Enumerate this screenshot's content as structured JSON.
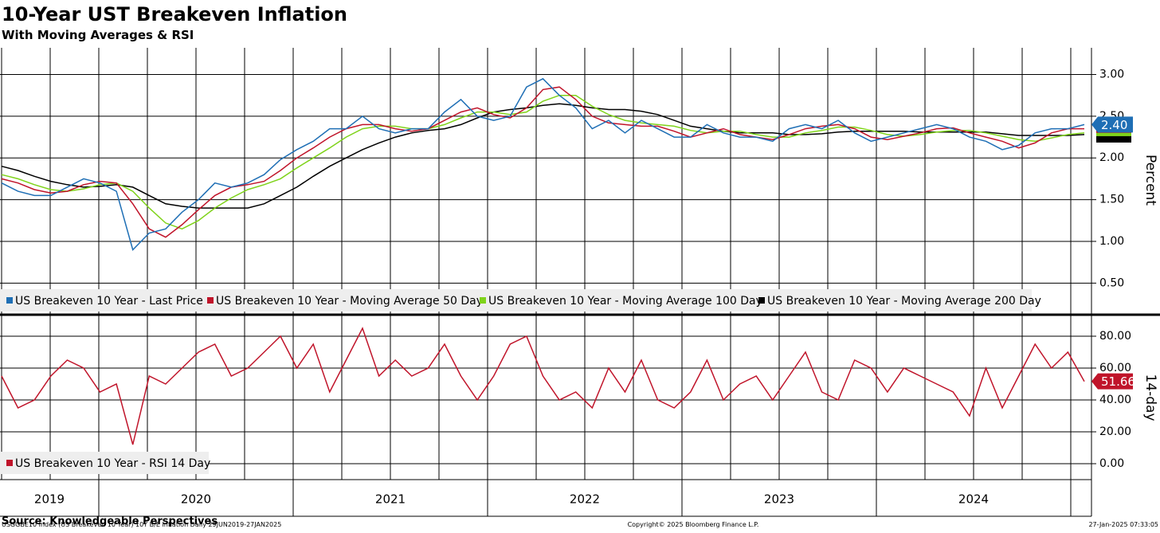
{
  "title": "10-Year UST Breakeven Inflation",
  "subtitle": "With Moving Averages & RSI",
  "source": "Source: Knowledgeable Perspectives",
  "footer": [
    "USGGBE10 Index (US Breakeven 10 Year) 10Y B/E Inflation  Daily 29JUN2019-27JAN2025",
    "Copyright© 2025 Bloomberg Finance L.P.",
    "27-Jan-2025 07:33:05"
  ],
  "x_labels": [
    "2019",
    "2020",
    "2021",
    "2022",
    "2023",
    "2024"
  ],
  "chart_data": [
    {
      "type": "line",
      "ylabel": "Percent",
      "ylim": [
        0.15,
        3.32
      ],
      "grid": true,
      "yticks": [
        {
          "value": 0.5,
          "label": "0.50"
        },
        {
          "value": 1,
          "label": "1.00"
        },
        {
          "value": 1.5,
          "label": "1.50"
        },
        {
          "value": 2,
          "label": "2.00"
        },
        {
          "value": 2.5,
          "label": "2.50"
        },
        {
          "value": 3,
          "label": "3.00"
        }
      ],
      "series": [
        {
          "name": "US Breakeven 10 Year - Last Price",
          "color": "#1f6fb5",
          "values": [
            1.7,
            1.6,
            1.55,
            1.55,
            1.65,
            1.75,
            1.7,
            1.6,
            0.9,
            1.1,
            1.15,
            1.35,
            1.5,
            1.7,
            1.65,
            1.7,
            1.8,
            1.98,
            2.1,
            2.2,
            2.35,
            2.35,
            2.5,
            2.35,
            2.3,
            2.35,
            2.35,
            2.55,
            2.7,
            2.5,
            2.45,
            2.5,
            2.85,
            2.95,
            2.75,
            2.6,
            2.35,
            2.45,
            2.3,
            2.45,
            2.35,
            2.25,
            2.25,
            2.4,
            2.3,
            2.25,
            2.25,
            2.2,
            2.35,
            2.4,
            2.35,
            2.45,
            2.3,
            2.2,
            2.25,
            2.3,
            2.35,
            2.4,
            2.35,
            2.25,
            2.2,
            2.1,
            2.15,
            2.3,
            2.35,
            2.35,
            2.4
          ],
          "value_labels": [
            null,
            null,
            null,
            null,
            null,
            null,
            null,
            null,
            null,
            null,
            null,
            null,
            null,
            null,
            null,
            null,
            null,
            null,
            null,
            null,
            null,
            null,
            null,
            null,
            null,
            null,
            null,
            null,
            null,
            null,
            null,
            null,
            null,
            null,
            null,
            null,
            null,
            null,
            null,
            null,
            null,
            null,
            null,
            null,
            null,
            null,
            null,
            null,
            null,
            null,
            null,
            null,
            null,
            null,
            null,
            null,
            null,
            null,
            null,
            null,
            null,
            null,
            null,
            null,
            null,
            null,
            "2.40"
          ]
        },
        {
          "name": "US Breakeven 10 Year - Moving Average 50 Day",
          "color": "#c0142a",
          "values": [
            1.75,
            1.7,
            1.62,
            1.58,
            1.6,
            1.68,
            1.72,
            1.7,
            1.45,
            1.15,
            1.05,
            1.2,
            1.38,
            1.55,
            1.65,
            1.68,
            1.72,
            1.85,
            2.0,
            2.12,
            2.25,
            2.35,
            2.4,
            2.4,
            2.35,
            2.32,
            2.35,
            2.45,
            2.55,
            2.6,
            2.52,
            2.48,
            2.6,
            2.82,
            2.85,
            2.7,
            2.5,
            2.42,
            2.4,
            2.38,
            2.38,
            2.32,
            2.25,
            2.3,
            2.35,
            2.28,
            2.25,
            2.22,
            2.28,
            2.35,
            2.38,
            2.4,
            2.35,
            2.25,
            2.22,
            2.26,
            2.3,
            2.35,
            2.36,
            2.3,
            2.25,
            2.2,
            2.12,
            2.18,
            2.3,
            2.35,
            2.35
          ]
        },
        {
          "name": "US Breakeven 10 Year - Moving Average 100 Day",
          "color": "#7fd31a",
          "values": [
            1.8,
            1.75,
            1.68,
            1.62,
            1.6,
            1.63,
            1.68,
            1.7,
            1.6,
            1.4,
            1.22,
            1.15,
            1.25,
            1.4,
            1.52,
            1.62,
            1.68,
            1.75,
            1.88,
            2.0,
            2.12,
            2.25,
            2.35,
            2.38,
            2.38,
            2.35,
            2.35,
            2.4,
            2.48,
            2.55,
            2.55,
            2.52,
            2.55,
            2.68,
            2.75,
            2.75,
            2.62,
            2.52,
            2.45,
            2.42,
            2.4,
            2.38,
            2.33,
            2.3,
            2.32,
            2.32,
            2.28,
            2.25,
            2.25,
            2.3,
            2.33,
            2.37,
            2.37,
            2.33,
            2.28,
            2.26,
            2.28,
            2.31,
            2.33,
            2.33,
            2.3,
            2.26,
            2.22,
            2.2,
            2.24,
            2.28,
            2.3
          ]
        },
        {
          "name": "US Breakeven 10 Year - Moving Average 200 Day",
          "color": "#000000",
          "values": [
            1.9,
            1.85,
            1.78,
            1.72,
            1.68,
            1.65,
            1.66,
            1.68,
            1.65,
            1.55,
            1.45,
            1.42,
            1.4,
            1.4,
            1.4,
            1.4,
            1.45,
            1.55,
            1.65,
            1.78,
            1.9,
            2.0,
            2.1,
            2.18,
            2.25,
            2.3,
            2.33,
            2.35,
            2.4,
            2.48,
            2.55,
            2.58,
            2.6,
            2.63,
            2.65,
            2.63,
            2.6,
            2.58,
            2.58,
            2.56,
            2.52,
            2.45,
            2.38,
            2.35,
            2.32,
            2.3,
            2.3,
            2.3,
            2.28,
            2.28,
            2.29,
            2.31,
            2.32,
            2.32,
            2.32,
            2.32,
            2.31,
            2.31,
            2.31,
            2.31,
            2.31,
            2.29,
            2.27,
            2.27,
            2.27,
            2.27,
            2.28
          ]
        }
      ]
    },
    {
      "type": "line",
      "ylabel": "14-day",
      "ylim": [
        -9,
        92
      ],
      "grid": true,
      "yticks": [
        {
          "value": 0,
          "label": "0.00"
        },
        {
          "value": 20,
          "label": "20.00"
        },
        {
          "value": 40,
          "label": "40.00"
        },
        {
          "value": 60,
          "label": "60.00"
        },
        {
          "value": 80,
          "label": "80.00"
        }
      ],
      "series": [
        {
          "name": "US Breakeven 10 Year - RSI 14 Day",
          "color": "#c0142a",
          "values": [
            55,
            35,
            40,
            55,
            65,
            60,
            45,
            50,
            12,
            55,
            50,
            60,
            70,
            75,
            55,
            60,
            70,
            80,
            60,
            75,
            45,
            65,
            85,
            55,
            65,
            55,
            60,
            75,
            55,
            40,
            55,
            75,
            80,
            55,
            40,
            45,
            35,
            60,
            45,
            65,
            40,
            35,
            45,
            65,
            40,
            50,
            55,
            40,
            55,
            70,
            45,
            40,
            65,
            60,
            45,
            60,
            55,
            50,
            45,
            30,
            60,
            35,
            55,
            75,
            60,
            70,
            51.66
          ],
          "value_labels": [
            null,
            null,
            null,
            null,
            null,
            null,
            null,
            null,
            null,
            null,
            null,
            null,
            null,
            null,
            null,
            null,
            null,
            null,
            null,
            null,
            null,
            null,
            null,
            null,
            null,
            null,
            null,
            null,
            null,
            null,
            null,
            null,
            null,
            null,
            null,
            null,
            null,
            null,
            null,
            null,
            null,
            null,
            null,
            null,
            null,
            null,
            null,
            null,
            null,
            null,
            null,
            null,
            null,
            null,
            null,
            null,
            null,
            null,
            null,
            null,
            null,
            null,
            null,
            null,
            null,
            null,
            "51.66"
          ]
        }
      ]
    }
  ]
}
